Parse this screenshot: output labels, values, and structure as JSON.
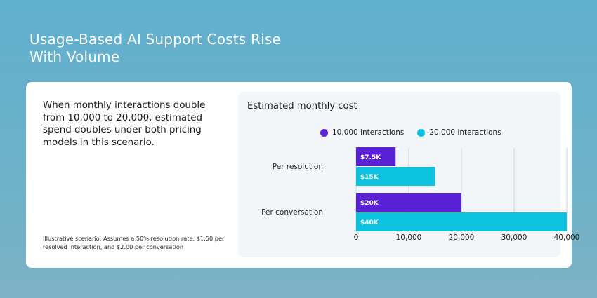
{
  "page": {
    "title": "Usage-Based AI Support Costs Rise With Volume"
  },
  "card": {
    "summary": "When monthly interactions double from 10,000 to 20,000, estimated spend doubles under both pricing models in this scenario.",
    "footnote": "Illustrative scenario: Assumes a 50% resolution rate, $1.50 per resolved interaction, and $2.00 per conversation"
  },
  "colors": {
    "series_10k": "#5b21d6",
    "series_20k": "#0cc2de",
    "gridline": "#c7d6dd"
  },
  "chart_data": {
    "type": "bar",
    "orientation": "horizontal",
    "title": "Estimated monthly cost",
    "categories": [
      "Per resolution",
      "Per conversation"
    ],
    "series": [
      {
        "name": "10,000 interactions",
        "values": [
          7500,
          20000
        ],
        "labels": [
          "$7.5K",
          "$20K"
        ]
      },
      {
        "name": "20,000 interactions",
        "values": [
          15000,
          40000
        ],
        "labels": [
          "$15K",
          "$40K"
        ]
      }
    ],
    "xlim": [
      0,
      40000
    ],
    "xticks": [
      0,
      10000,
      20000,
      30000,
      40000
    ],
    "xtick_labels": [
      "0",
      "10,000",
      "20,000",
      "30,000",
      "40,000"
    ],
    "grid": "vertical",
    "legend_position": "top"
  }
}
